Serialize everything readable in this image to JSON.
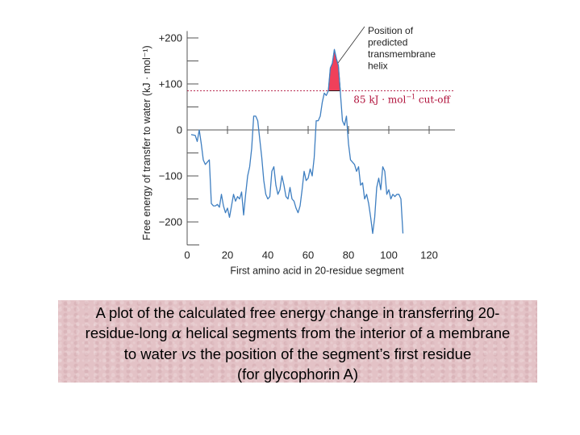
{
  "chart_data": {
    "type": "line",
    "title": "",
    "xlabel": "First amino acid in 20-residue segment",
    "ylabel": "Free energy of transfer to water (kJ · mol⁻¹)",
    "xlim": [
      0,
      140
    ],
    "ylim": [
      -250,
      215
    ],
    "x_ticks": [
      0,
      20,
      40,
      60,
      80,
      100,
      120
    ],
    "y_ticks": [
      {
        "value": 200,
        "label": "+200"
      },
      {
        "value": 100,
        "label": "+100"
      },
      {
        "value": 0,
        "label": "0"
      },
      {
        "value": -100,
        "label": "−100"
      },
      {
        "value": -200,
        "label": "−200"
      }
    ],
    "cutoff": {
      "value": 85,
      "label_value": "85 kJ · mol",
      "label_exp": "−1",
      "label_rest": " cut-off"
    },
    "highlight": {
      "x_start": 70,
      "x_end": 74,
      "label_lines": [
        "Position of",
        "predicted",
        "transmembrane",
        "helix"
      ]
    },
    "colors": {
      "line": "#3f7fc1",
      "highlight": "#f0405a",
      "cutoff": "#b0103a",
      "axis": "#555555"
    },
    "series": [
      {
        "points": [
          [
            2,
            -10
          ],
          [
            4,
            -12
          ],
          [
            5,
            -25
          ],
          [
            6,
            0
          ],
          [
            7,
            -30
          ],
          [
            8,
            -65
          ],
          [
            9,
            -75
          ],
          [
            10,
            -70
          ],
          [
            11,
            -65
          ],
          [
            12,
            -160
          ],
          [
            13,
            -165
          ],
          [
            14,
            -165
          ],
          [
            15,
            -162
          ],
          [
            16,
            -168
          ],
          [
            17,
            -140
          ],
          [
            18,
            -165
          ],
          [
            19,
            -180
          ],
          [
            20,
            -170
          ],
          [
            21,
            -190
          ],
          [
            22,
            -165
          ],
          [
            23,
            -140
          ],
          [
            24,
            -155
          ],
          [
            25,
            -145
          ],
          [
            26,
            -150
          ],
          [
            27,
            -135
          ],
          [
            28,
            -185
          ],
          [
            29,
            -140
          ],
          [
            30,
            -100
          ],
          [
            31,
            -80
          ],
          [
            32,
            -40
          ],
          [
            33,
            30
          ],
          [
            34,
            30
          ],
          [
            35,
            20
          ],
          [
            36,
            -20
          ],
          [
            37,
            -60
          ],
          [
            38,
            -110
          ],
          [
            39,
            -140
          ],
          [
            40,
            -150
          ],
          [
            41,
            -145
          ],
          [
            42,
            -90
          ],
          [
            43,
            -80
          ],
          [
            44,
            -120
          ],
          [
            45,
            -140
          ],
          [
            46,
            -130
          ],
          [
            47,
            -100
          ],
          [
            48,
            -120
          ],
          [
            49,
            -145
          ],
          [
            50,
            -150
          ],
          [
            51,
            -125
          ],
          [
            52,
            -150
          ],
          [
            53,
            -155
          ],
          [
            54,
            -170
          ],
          [
            55,
            -180
          ],
          [
            56,
            -165
          ],
          [
            57,
            -130
          ],
          [
            58,
            -90
          ],
          [
            59,
            -110
          ],
          [
            60,
            -105
          ],
          [
            61,
            -85
          ],
          [
            62,
            -100
          ],
          [
            63,
            -60
          ],
          [
            64,
            20
          ],
          [
            65,
            20
          ],
          [
            66,
            30
          ],
          [
            67,
            60
          ],
          [
            68,
            80
          ],
          [
            69,
            75
          ],
          [
            70,
            85
          ],
          [
            71,
            135
          ],
          [
            72,
            145
          ],
          [
            73,
            175
          ],
          [
            74,
            155
          ],
          [
            75,
            140
          ],
          [
            76,
            80
          ],
          [
            77,
            20
          ],
          [
            78,
            10
          ],
          [
            79,
            30
          ],
          [
            80,
            -30
          ],
          [
            81,
            -65
          ],
          [
            82,
            -70
          ],
          [
            83,
            -75
          ],
          [
            84,
            -90
          ],
          [
            85,
            -80
          ],
          [
            86,
            -120
          ],
          [
            87,
            -115
          ],
          [
            88,
            -150
          ],
          [
            89,
            -140
          ],
          [
            90,
            -160
          ],
          [
            91,
            -190
          ],
          [
            92,
            -225
          ],
          [
            93,
            -190
          ],
          [
            94,
            -125
          ],
          [
            95,
            -105
          ],
          [
            96,
            -130
          ],
          [
            97,
            -80
          ],
          [
            98,
            -90
          ],
          [
            99,
            -140
          ],
          [
            100,
            -130
          ],
          [
            101,
            -150
          ],
          [
            102,
            -140
          ],
          [
            103,
            -145
          ],
          [
            104,
            -140
          ],
          [
            105,
            -140
          ],
          [
            106,
            -150
          ],
          [
            107,
            -225
          ]
        ]
      }
    ]
  },
  "caption": {
    "line1": "A plot of the calculated free energy change in transferring 20-",
    "line2_pre": "residue-long ",
    "line2_alpha": "α",
    "line2_post": " helical segments from the interior of a membrane",
    "line3_pre": "to water ",
    "line3_vs": "vs",
    "line3_post": " the position of the segment’s first residue",
    "line4": "(for glycophorin A)"
  }
}
